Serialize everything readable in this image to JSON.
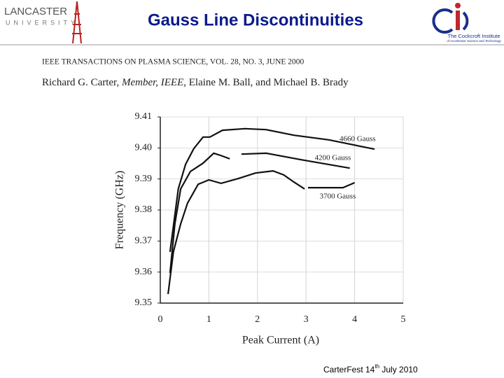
{
  "slide": {
    "title": "Gauss Line Discontinuities",
    "logo_left": [
      "LANCASTER",
      "UNIVERSITY"
    ],
    "logo_right": [
      "The Cockcroft Institute",
      "of Accelerator Science and Technology"
    ],
    "journal": "IEEE TRANSACTIONS ON PLASMA SCIENCE, VOL. 28, NO. 3, JUNE 2000",
    "authors": [
      "Richard G. Carter, ",
      "Member, IEEE",
      ", Elaine M. Ball, and Michael B. Brady"
    ],
    "footer": [
      "CarterFest 14",
      "th",
      " July 2010"
    ]
  },
  "chart_data": {
    "type": "line",
    "x_label": "Peak Current (A)",
    "y_label": "Frequency (GHz)",
    "xlim": [
      0,
      5
    ],
    "xticks": [
      0,
      1,
      2,
      3,
      4,
      5
    ],
    "ylim": [
      9.35,
      9.41
    ],
    "yticks": [
      9.35,
      9.36,
      9.37,
      9.38,
      9.39,
      {
        "value": 9.4,
        "label": "9.40"
      },
      9.41
    ],
    "grid": true,
    "series": [
      {
        "name": "4660 Gauss",
        "color": "#111111",
        "x": [
          0.2,
          0.37,
          0.52,
          0.69,
          0.88,
          1.02,
          1.28,
          1.74,
          2.18,
          2.75,
          3.47,
          4.41
        ],
        "values": [
          9.3665,
          9.3868,
          9.3947,
          9.3998,
          9.4035,
          9.4035,
          9.4057,
          9.4062,
          9.4059,
          9.4041,
          9.4026,
          9.3996
        ]
      },
      {
        "name": "4200 Gauss",
        "color": "#111111",
        "x": [
          0.2,
          0.3,
          0.42,
          0.62,
          0.88,
          1.1,
          1.24,
          1.43,
          1.55,
          1.67,
          2.18,
          2.9,
          3.9
        ],
        "values": [
          9.3597,
          9.3755,
          9.3868,
          9.3924,
          9.3951,
          9.3983,
          9.3976,
          9.3965,
          null,
          9.398,
          9.3983,
          9.3962,
          9.3935
        ]
      },
      {
        "name": "3700 Gauss",
        "color": "#111111",
        "x": [
          0.16,
          0.27,
          0.42,
          0.56,
          0.78,
          1.0,
          1.25,
          1.6,
          1.96,
          2.32,
          2.54,
          2.75,
          2.97,
          3.0,
          3.04,
          3.76,
          4.0
        ],
        "values": [
          9.3529,
          9.3665,
          9.3755,
          9.3822,
          9.3883,
          9.3897,
          9.3886,
          9.3901,
          9.3919,
          9.3926,
          9.3913,
          9.389,
          9.3868,
          null,
          9.3872,
          9.3872,
          9.3888
        ]
      }
    ]
  }
}
